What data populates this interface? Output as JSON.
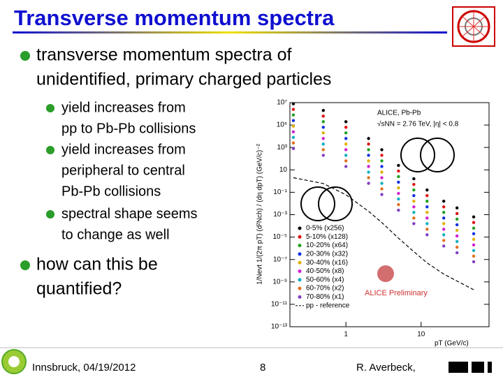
{
  "slide": {
    "title": "Transverse momentum spectra",
    "bullets": [
      {
        "lines": [
          "transverse momentum spectra of",
          "unidentified, primary charged particles"
        ]
      },
      {
        "lines": [
          "how can this be",
          "quantified?"
        ]
      }
    ],
    "sub_bullets": [
      {
        "lines": [
          "yield increases from",
          "pp to Pb-Pb collisions"
        ]
      },
      {
        "lines": [
          "yield increases from",
          "peripheral to central",
          "Pb-Pb collisions"
        ]
      },
      {
        "lines": [
          "spectral shape seems",
          "to change as well"
        ]
      }
    ],
    "footer": {
      "left": "Innsbruck, 04/19/2012",
      "page": "8",
      "right": "R. Averbeck,"
    }
  },
  "chart_data": {
    "type": "scatter",
    "x_label": "pT (GeV/c)",
    "y_label": "1/Nevt 1/(2π pT) (d²Nch) / (dη dpT) (GeV/c)⁻²",
    "annotations": [
      "ALICE, Pb-Pb",
      "√sNN = 2.76 TeV, |η| < 0.8",
      "ALICE Preliminary"
    ],
    "log_x": true,
    "log_y": true,
    "xlim": [
      0.18,
      80
    ],
    "xticks": [
      1,
      10
    ],
    "ylim": [
      1e-13,
      10000000.0
    ],
    "yticks": [
      {
        "value": 10000000.0,
        "label": "10⁷"
      },
      {
        "value": 100000.0,
        "label": "10⁵"
      },
      {
        "value": 1000.0,
        "label": "10³"
      },
      10,
      {
        "value": 0.1,
        "label": "10⁻¹"
      },
      {
        "value": 0.001,
        "label": "10⁻³"
      },
      {
        "value": 1e-05,
        "label": "10⁻⁵"
      },
      {
        "value": 1e-07,
        "label": "10⁻⁷"
      },
      {
        "value": 1e-09,
        "label": "10⁻⁹"
      },
      {
        "value": 1e-11,
        "label": "10⁻¹¹"
      },
      {
        "value": 1e-13,
        "label": "10⁻¹³"
      }
    ],
    "x": [
      0.2,
      0.5,
      1,
      2,
      3,
      5,
      8,
      12,
      20,
      30,
      50
    ],
    "series": [
      {
        "name": "0-5% (x256)",
        "color": "#000000",
        "values": [
          7900000.0,
          2000000.0,
          200000.0,
          6300.0,
          630,
          25,
          1.6,
          0.16,
          0.016,
          0.004,
          0.00063
        ]
      },
      {
        "name": "5-10% (x128)",
        "color": "#e01010",
        "values": [
          2500000.0,
          630000.0,
          63000.0,
          2000.0,
          200,
          7.9,
          0.5,
          0.05,
          0.005,
          0.00126,
          0.0002
        ]
      },
      {
        "name": "10-20% (x64)",
        "color": "#20a020",
        "values": [
          790000.0,
          200000.0,
          20000.0,
          630,
          63,
          2.5,
          0.16,
          0.016,
          0.0016,
          0.0004,
          6.3e-05
        ]
      },
      {
        "name": "20-30% (x32)",
        "color": "#1030e0",
        "values": [
          250000.0,
          63000.0,
          6300.0,
          200,
          20,
          0.79,
          0.05,
          0.005,
          0.0005,
          0.000126,
          2e-05
        ]
      },
      {
        "name": "30-40% (x16)",
        "color": "#e0b000",
        "values": [
          79000.0,
          20000.0,
          2000.0,
          63,
          6.3,
          0.25,
          0.016,
          0.0016,
          0.00016,
          4e-05,
          6.3e-06
        ]
      },
      {
        "name": "40-50% (x8)",
        "color": "#d020d0",
        "values": [
          25000.0,
          6300.0,
          630,
          20,
          2,
          0.079,
          0.005,
          0.0005,
          5e-05,
          1.26e-05,
          2e-06
        ]
      },
      {
        "name": "50-60% (x4)",
        "color": "#10b0c0",
        "values": [
          7900.0,
          2000.0,
          200,
          6.3,
          0.63,
          0.025,
          0.0016,
          0.00016,
          1.6e-05,
          4e-06,
          6.3e-07
        ]
      },
      {
        "name": "60-70% (x2)",
        "color": "#e07020",
        "values": [
          2500.0,
          630,
          63,
          2,
          0.2,
          0.0079,
          0.0005,
          5e-05,
          5e-06,
          1.26e-06,
          2e-07
        ]
      },
      {
        "name": "70-80% (x1)",
        "color": "#8040c0",
        "values": [
          790,
          200,
          20,
          0.63,
          0.063,
          0.0025,
          0.00016,
          1.6e-05,
          1.6e-06,
          4e-07,
          6.3e-08
        ]
      },
      {
        "name": "pp - reference",
        "color": "#000000",
        "line": true,
        "values": [
          2,
          0.6,
          0.06,
          0.002,
          0.0002,
          8e-06,
          5e-07,
          5e-08,
          5e-09,
          1.2e-09,
          2e-10
        ]
      }
    ]
  }
}
